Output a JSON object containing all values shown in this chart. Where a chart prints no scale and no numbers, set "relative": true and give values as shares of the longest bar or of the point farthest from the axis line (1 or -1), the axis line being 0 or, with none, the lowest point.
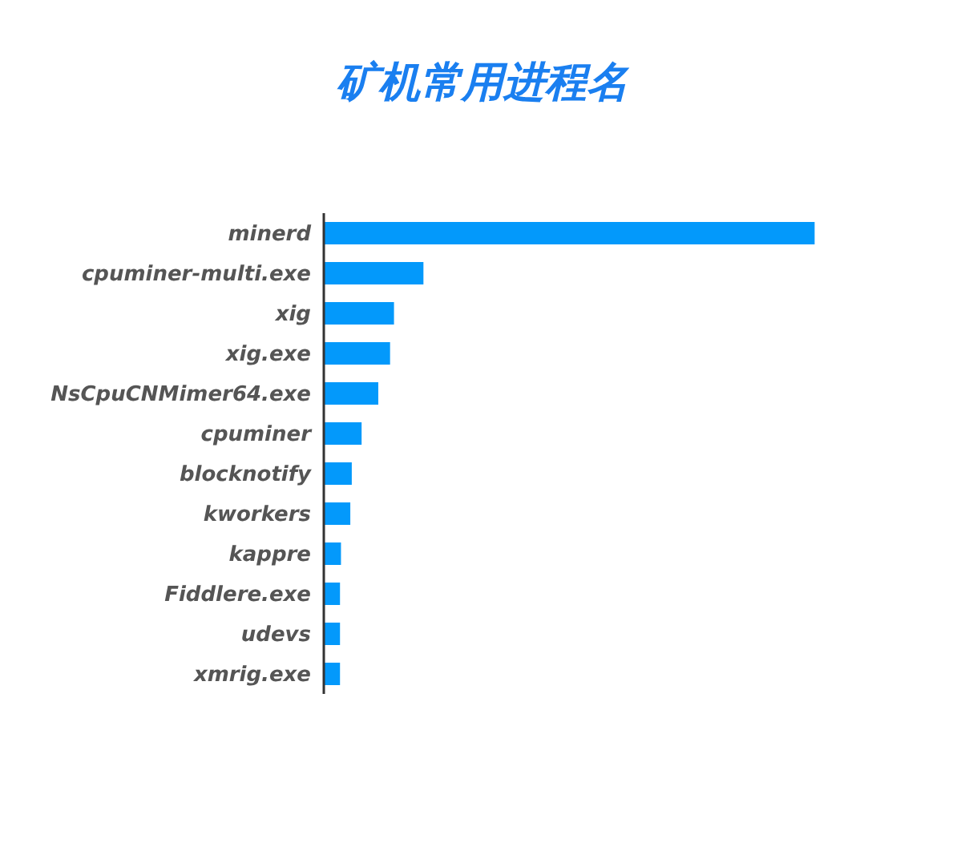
{
  "chart_data": {
    "type": "bar",
    "orientation": "horizontal",
    "relative": true,
    "title": "矿机常用进程名",
    "categories": [
      "minerd",
      "cpuminer-multi.exe",
      "xig",
      "xig.exe",
      "NsCpuCNMimer64.exe",
      "cpuminer",
      "blocknotify",
      "kworkers",
      "kappre",
      "Fiddlere.exe",
      "udevs",
      "xmrig.exe"
    ],
    "values": [
      1,
      0.203,
      0.143,
      0.135,
      0.111,
      0.077,
      0.057,
      0.054,
      0.035,
      0.033,
      0.033,
      0.033
    ],
    "color": "#0399fb"
  }
}
